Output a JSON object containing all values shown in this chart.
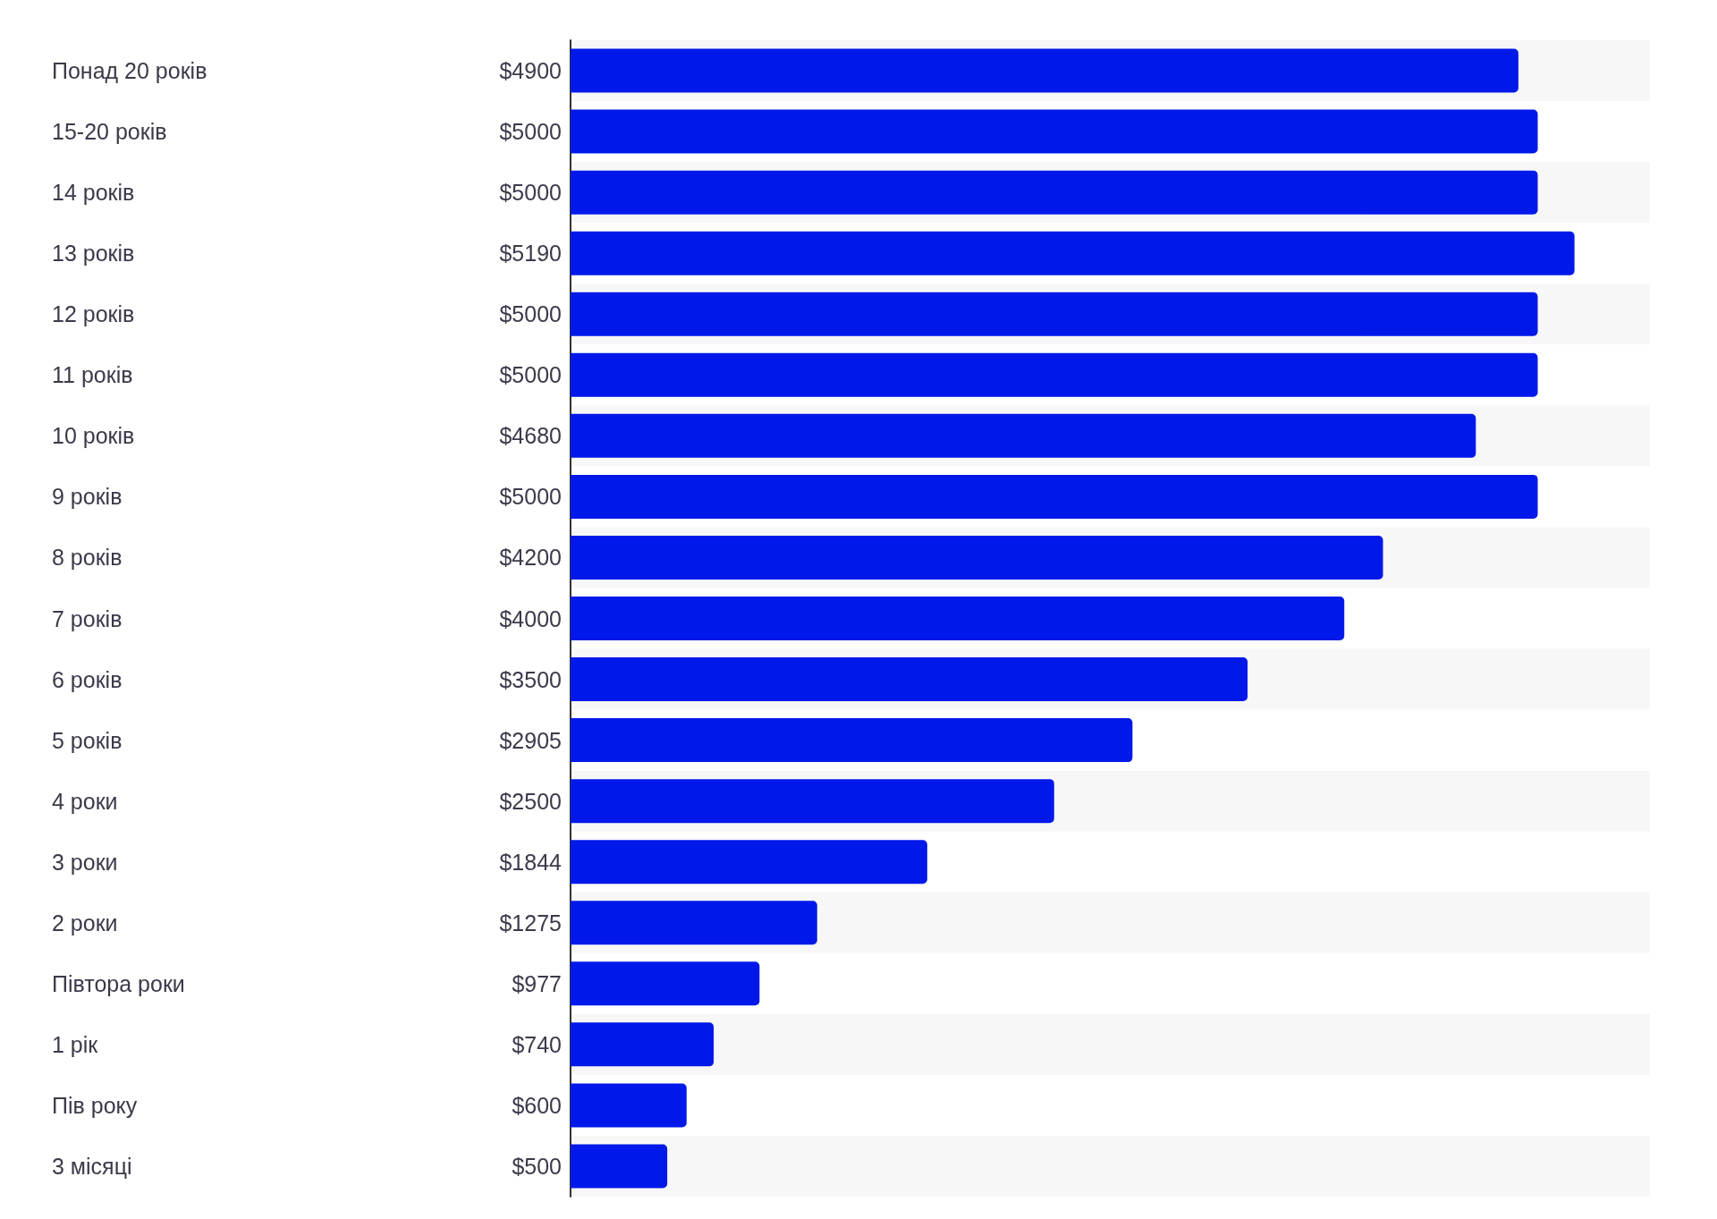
{
  "chart_data": {
    "type": "bar",
    "orientation": "horizontal",
    "categories": [
      "Понад 20 років",
      "15-20 років",
      "14 років",
      "13 років",
      "12 років",
      "11 років",
      "10 років",
      "9 років",
      "8 років",
      "7 років",
      "6 років",
      "5 років",
      "4 роки",
      "3 роки",
      "2 роки",
      "Півтора роки",
      "1 рік",
      "Пів року",
      "3 місяці"
    ],
    "values": [
      4900,
      5000,
      5000,
      5190,
      5000,
      5000,
      4680,
      5000,
      4200,
      4000,
      3500,
      2905,
      2500,
      1844,
      1275,
      977,
      740,
      600,
      500
    ],
    "value_labels": [
      "$4900",
      "$5000",
      "$5000",
      "$5190",
      "$5000",
      "$5000",
      "$4680",
      "$5000",
      "$4200",
      "$4000",
      "$3500",
      "$2905",
      "$2500",
      "$1844",
      "$1275",
      "$977",
      "$740",
      "$600",
      "$500"
    ],
    "color": "#0019ea",
    "xlim": [
      0,
      5580
    ]
  }
}
